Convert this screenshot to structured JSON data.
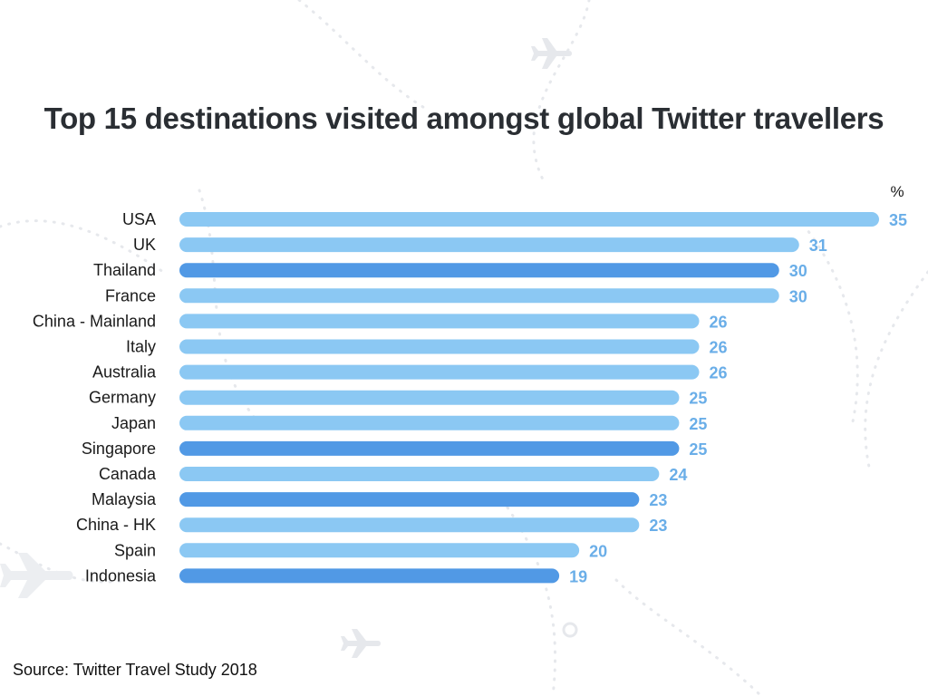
{
  "colors": {
    "bar_light": "#8bc8f3",
    "bar_dark": "#5199e5",
    "value_label": "#6aaee8",
    "category_label": "#1a1a1a",
    "title": "#2a2e33",
    "decor": "#e6e8ec"
  },
  "icons": [
    "airplane-icon",
    "map-pin-icon"
  ],
  "source": "Source: Twitter Travel Study 2018",
  "chart_data": {
    "type": "bar",
    "orientation": "horizontal",
    "title": "Top 15 destinations visited amongst global Twitter travellers",
    "unit_label": "%",
    "xlim": [
      0,
      35
    ],
    "grid": false,
    "categories": [
      "USA",
      "UK",
      "Thailand",
      "France",
      "China - Mainland",
      "Italy",
      "Australia",
      "Germany",
      "Japan",
      "Singapore",
      "Canada",
      "Malaysia",
      "China - HK",
      "Spain",
      "Indonesia"
    ],
    "values": [
      35,
      31,
      30,
      30,
      26,
      26,
      26,
      25,
      25,
      25,
      24,
      23,
      23,
      20,
      19
    ],
    "value_labels": [
      "35",
      "31",
      "30",
      "30",
      "26",
      "26",
      "26",
      "25",
      "25",
      "25",
      "24",
      "23",
      "23",
      "20",
      "19"
    ],
    "highlighted": [
      false,
      false,
      true,
      false,
      false,
      false,
      false,
      false,
      false,
      true,
      false,
      true,
      false,
      false,
      true
    ]
  }
}
